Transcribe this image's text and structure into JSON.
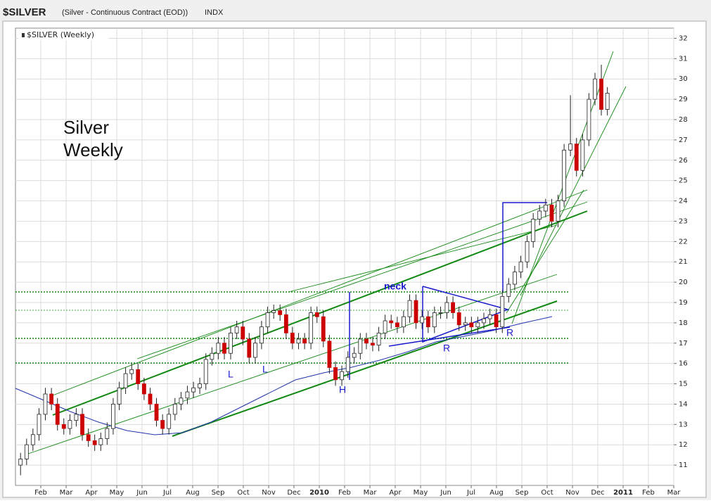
{
  "chart_data": {
    "type": "candlestick",
    "title": "$SILVER",
    "subtitle": "(Silver - Continuous Contract (EOD))",
    "exchange": "INDX",
    "legend": "$SILVER (Weekly)",
    "annotations": {
      "label": [
        "Silver",
        "Weekly"
      ],
      "neck": "neck",
      "left_shoulders": [
        "L",
        "L"
      ],
      "head": "H",
      "right_shoulders": [
        "R",
        "R"
      ]
    },
    "up_color": "#ffffff",
    "down_color": "#cc0000",
    "grid": true,
    "x": [
      0.2,
      0.44,
      0.69,
      0.93,
      1.18,
      1.42,
      1.66,
      1.91,
      2.15,
      2.4,
      2.64,
      2.88,
      3.13,
      3.37,
      3.62,
      3.86,
      4.1,
      4.35,
      4.59,
      4.84,
      5.08,
      5.32,
      5.57,
      5.81,
      6.06,
      6.3,
      6.54,
      6.79,
      7.03,
      7.28,
      7.52,
      7.76,
      8.01,
      8.25,
      8.5,
      8.74,
      8.98,
      9.23,
      9.47,
      9.72,
      9.96,
      10.2,
      10.45,
      10.69,
      10.94,
      11.18,
      11.42,
      11.67,
      11.91,
      12.16,
      12.4,
      12.64,
      12.89,
      13.13,
      13.38,
      13.62,
      13.86,
      14.11,
      14.35,
      14.6,
      14.84,
      15.08,
      15.33,
      15.57,
      15.82,
      16.06,
      16.3,
      16.55,
      16.79,
      17.04,
      17.28,
      17.52,
      17.77,
      18.01,
      18.26,
      18.5,
      18.74,
      18.99,
      19.23,
      19.48,
      19.72,
      19.96,
      20.21,
      20.45,
      20.7,
      20.94,
      21.18,
      21.43,
      21.67,
      21.92,
      22.16,
      22.4,
      22.65,
      22.89,
      23.14,
      23.38
    ],
    "open": [
      11.0,
      11.3,
      12.0,
      12.5,
      13.5,
      14.5,
      14.0,
      13.0,
      12.8,
      13.2,
      13.5,
      12.5,
      12.2,
      12.0,
      12.3,
      12.8,
      14.0,
      14.8,
      15.5,
      15.7,
      15.0,
      14.5,
      14.0,
      13.2,
      12.8,
      13.5,
      14.0,
      14.3,
      14.6,
      14.8,
      15.0,
      16.2,
      16.5,
      17.0,
      16.5,
      17.5,
      17.8,
      17.2,
      16.3,
      17.0,
      17.8,
      18.5,
      18.6,
      18.4,
      17.5,
      17.0,
      17.2,
      17.0,
      18.5,
      18.3,
      17.1,
      15.8,
      15.2,
      15.6,
      16.3,
      16.5,
      17.2,
      17.0,
      16.9,
      17.5,
      18.1,
      18.0,
      17.8,
      18.3,
      19.1,
      18.0,
      18.3,
      17.8,
      18.5,
      18.5,
      19.0,
      18.5,
      17.9,
      18.0,
      17.8,
      18.0,
      18.2,
      18.4,
      17.8,
      19.3,
      19.9,
      20.5,
      21.0,
      22.0,
      23.1,
      23.5,
      23.8,
      23.0,
      24.0,
      26.5,
      26.8,
      25.5,
      27.0,
      29.0,
      30.0,
      28.5
    ],
    "high": [
      11.6,
      12.3,
      12.8,
      13.8,
      14.8,
      14.8,
      14.3,
      13.3,
      13.5,
      13.8,
      13.8,
      12.8,
      12.5,
      12.6,
      13.1,
      14.3,
      15.1,
      15.8,
      16.0,
      16.0,
      15.3,
      14.8,
      14.3,
      13.5,
      13.8,
      14.3,
      14.6,
      14.9,
      15.1,
      15.3,
      16.5,
      16.8,
      17.3,
      17.3,
      17.8,
      18.1,
      18.1,
      17.5,
      17.3,
      18.1,
      18.8,
      18.9,
      18.9,
      18.7,
      17.8,
      17.5,
      17.5,
      18.8,
      18.8,
      18.6,
      17.4,
      16.1,
      15.9,
      16.6,
      16.8,
      17.5,
      17.5,
      17.3,
      17.8,
      18.4,
      18.4,
      18.3,
      18.6,
      19.4,
      19.4,
      18.6,
      18.6,
      18.8,
      18.8,
      19.3,
      19.3,
      18.8,
      18.3,
      18.3,
      18.3,
      18.5,
      18.7,
      18.7,
      19.6,
      20.2,
      20.8,
      21.3,
      22.3,
      23.4,
      23.8,
      24.1,
      24.1,
      24.3,
      26.8,
      29.2,
      27.1,
      27.3,
      29.3,
      30.3,
      30.7,
      29.6
    ],
    "low": [
      10.5,
      11.0,
      11.7,
      12.2,
      13.2,
      13.7,
      12.7,
      12.5,
      12.5,
      12.9,
      12.2,
      11.9,
      11.7,
      11.7,
      12.0,
      12.5,
      13.7,
      14.5,
      15.2,
      14.7,
      14.2,
      13.7,
      12.9,
      12.5,
      12.5,
      13.2,
      13.7,
      14.0,
      14.3,
      14.5,
      14.7,
      15.9,
      16.2,
      16.2,
      16.2,
      17.2,
      16.9,
      16.0,
      16.0,
      16.7,
      17.5,
      18.2,
      18.1,
      17.2,
      16.7,
      16.7,
      16.7,
      16.7,
      18.0,
      16.8,
      15.5,
      14.9,
      14.9,
      15.3,
      16.0,
      16.2,
      16.7,
      16.6,
      16.6,
      17.2,
      17.7,
      17.5,
      17.5,
      18.0,
      17.7,
      17.7,
      17.5,
      17.5,
      18.2,
      18.2,
      18.2,
      17.6,
      17.6,
      17.5,
      17.5,
      17.7,
      17.9,
      17.5,
      17.5,
      19.0,
      19.6,
      20.2,
      20.7,
      21.7,
      22.8,
      23.2,
      22.7,
      22.7,
      23.7,
      26.2,
      25.2,
      25.2,
      26.7,
      28.7,
      28.2,
      28.2
    ],
    "close": [
      11.3,
      12.0,
      12.5,
      13.5,
      14.5,
      14.0,
      13.0,
      12.8,
      13.2,
      13.5,
      12.5,
      12.2,
      12.0,
      12.3,
      12.8,
      14.0,
      14.8,
      15.5,
      15.7,
      15.0,
      14.5,
      14.0,
      13.2,
      12.8,
      13.5,
      14.0,
      14.3,
      14.6,
      14.8,
      15.0,
      16.2,
      16.5,
      17.0,
      16.5,
      17.5,
      17.8,
      17.2,
      16.3,
      17.0,
      17.8,
      18.5,
      18.6,
      18.4,
      17.5,
      17.0,
      17.2,
      17.0,
      18.5,
      18.3,
      17.1,
      15.8,
      15.2,
      15.6,
      16.3,
      16.5,
      17.2,
      17.0,
      16.9,
      17.5,
      18.1,
      18.0,
      17.8,
      18.3,
      19.1,
      18.0,
      18.3,
      17.8,
      18.5,
      18.5,
      19.0,
      18.5,
      17.9,
      18.0,
      17.8,
      18.0,
      18.2,
      18.4,
      17.8,
      19.3,
      19.9,
      20.5,
      21.0,
      22.0,
      23.1,
      23.5,
      23.8,
      23.0,
      24.0,
      26.5,
      26.8,
      25.5,
      27.0,
      29.0,
      30.0,
      28.5,
      29.3
    ],
    "xlim": [
      0,
      26
    ],
    "xticks": [
      {
        "value": 1,
        "label": "Feb"
      },
      {
        "value": 2,
        "label": "Mar"
      },
      {
        "value": 3,
        "label": "Apr"
      },
      {
        "value": 4,
        "label": "May"
      },
      {
        "value": 5,
        "label": "Jun"
      },
      {
        "value": 6,
        "label": "Jul"
      },
      {
        "value": 7,
        "label": "Aug"
      },
      {
        "value": 8,
        "label": "Sep"
      },
      {
        "value": 9,
        "label": "Oct"
      },
      {
        "value": 10,
        "label": "Nov"
      },
      {
        "value": 11,
        "label": "Dec"
      },
      {
        "value": 12,
        "label": "2010"
      },
      {
        "value": 13,
        "label": "Feb"
      },
      {
        "value": 14,
        "label": "Mar"
      },
      {
        "value": 15,
        "label": "Apr"
      },
      {
        "value": 16,
        "label": "May"
      },
      {
        "value": 17,
        "label": "Jun"
      },
      {
        "value": 18,
        "label": "Jul"
      },
      {
        "value": 19,
        "label": "Aug"
      },
      {
        "value": 20,
        "label": "Sep"
      },
      {
        "value": 21,
        "label": "Oct"
      },
      {
        "value": 22,
        "label": "Nov"
      },
      {
        "value": 23,
        "label": "Dec"
      },
      {
        "value": 24,
        "label": "2011"
      },
      {
        "value": 25,
        "label": "Feb"
      },
      {
        "value": 26,
        "label": "Mar"
      }
    ],
    "ylim": [
      10,
      32.5
    ],
    "yticks": [
      11,
      12,
      13,
      14,
      15,
      16,
      17,
      18,
      19,
      20,
      21,
      22,
      23,
      24,
      25,
      26,
      27,
      28,
      29,
      30,
      31,
      32
    ]
  }
}
